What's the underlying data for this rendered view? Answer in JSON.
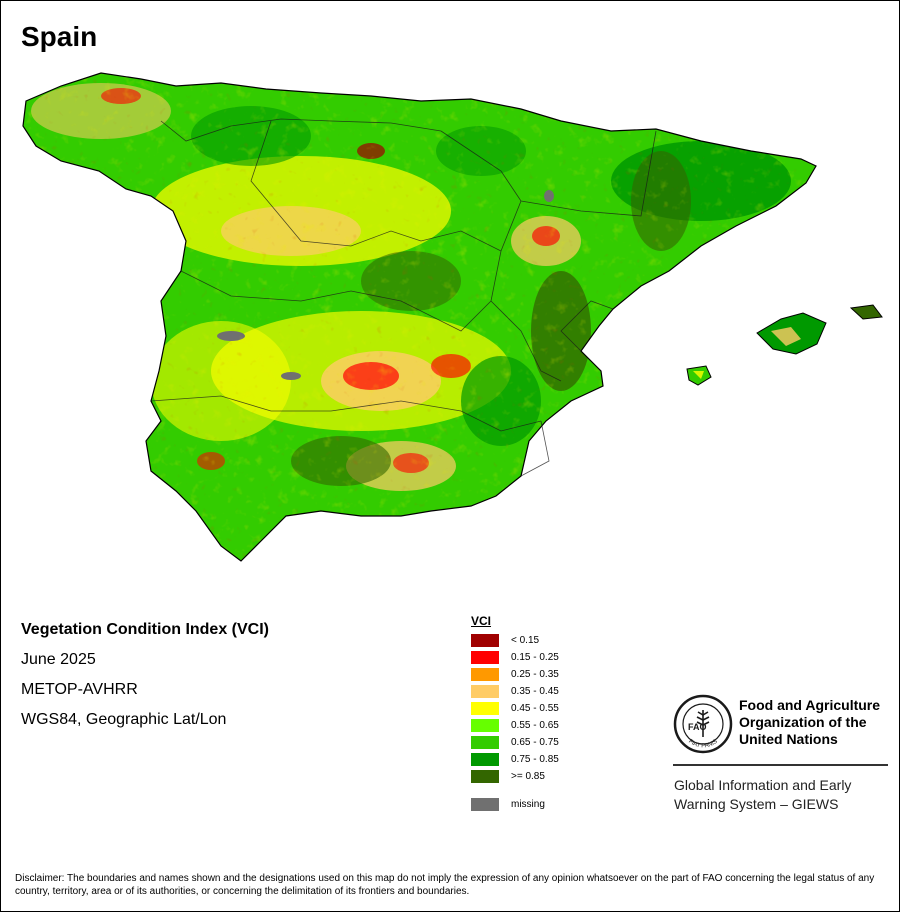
{
  "title": "Spain",
  "info": {
    "index_name": "Vegetation Condition Index (VCI)",
    "period": "June 2025",
    "sensor": "METOP-AVHRR",
    "projection": "WGS84, Geographic Lat/Lon"
  },
  "legend": {
    "title": "VCI",
    "items": [
      {
        "label": "< 0.15",
        "color": "#a00000"
      },
      {
        "label": "0.15 - 0.25",
        "color": "#ff0000"
      },
      {
        "label": "0.25 - 0.35",
        "color": "#ff9900"
      },
      {
        "label": "0.35 - 0.45",
        "color": "#ffcc66"
      },
      {
        "label": "0.45 - 0.55",
        "color": "#ffff00"
      },
      {
        "label": "0.55 - 0.65",
        "color": "#66ff00"
      },
      {
        "label": "0.65 - 0.75",
        "color": "#33cc00"
      },
      {
        "label": "0.75 - 0.85",
        "color": "#009900"
      },
      {
        "label": ">= 0.85",
        "color": "#336600"
      }
    ],
    "missing": {
      "label": "missing",
      "color": "#707070"
    }
  },
  "organization": {
    "logo_icon": "fao-logo-icon",
    "logo_letters": "FAO",
    "logo_motto": "FIAT PANIS",
    "name_lines": [
      "Food and Agriculture",
      "Organization of the",
      "United Nations"
    ],
    "system_lines": [
      "Global Information and Early",
      "Warning System – GIEWS"
    ]
  },
  "disclaimer": "Disclaimer: The boundaries and names shown and the designations used on this map do not imply the expression of any opinion whatsoever on the part of FAO concerning the legal status of any country, territory, area or of its authorities, or concerning the delimitation of its frontiers and boundaries."
}
